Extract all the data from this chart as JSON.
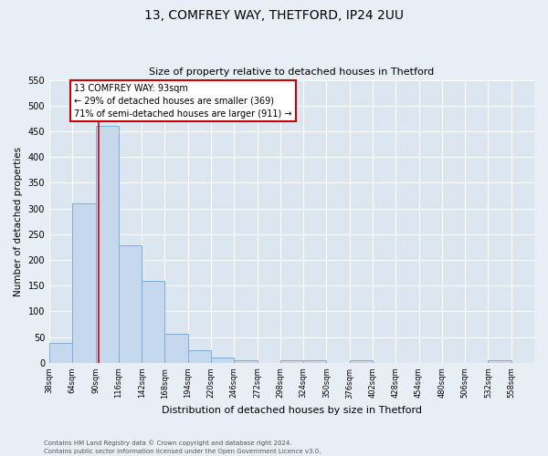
{
  "title_line1": "13, COMFREY WAY, THETFORD, IP24 2UU",
  "title_line2": "Size of property relative to detached houses in Thetford",
  "bar_edges": [
    38,
    64,
    90,
    116,
    142,
    168,
    194,
    220,
    246,
    272,
    298,
    324,
    350,
    376,
    402,
    428,
    454,
    480,
    506,
    532,
    558
  ],
  "bar_heights": [
    38,
    310,
    460,
    228,
    160,
    57,
    25,
    11,
    5,
    0,
    5,
    5,
    0,
    5,
    0,
    0,
    0,
    0,
    0,
    5
  ],
  "bar_color": "#c5d8ee",
  "bar_edge_color": "#7bafd4",
  "property_line_x": 93,
  "property_line_color": "#cc0000",
  "ylabel": "Number of detached properties",
  "xlabel": "Distribution of detached houses by size in Thetford",
  "ylim": [
    0,
    550
  ],
  "yticks": [
    0,
    50,
    100,
    150,
    200,
    250,
    300,
    350,
    400,
    450,
    500,
    550
  ],
  "annotation_title": "13 COMFREY WAY: 93sqm",
  "annotation_line1": "← 29% of detached houses are smaller (369)",
  "annotation_line2": "71% of semi-detached houses are larger (911) →",
  "annotation_box_color": "#ffffff",
  "annotation_box_edge_color": "#cc0000",
  "footnote_line1": "Contains HM Land Registry data © Crown copyright and database right 2024.",
  "footnote_line2": "Contains public sector information licensed under the Open Government Licence v3.0.",
  "background_color": "#e8eef5",
  "plot_bg_color": "#dce6f0",
  "fig_width": 6.0,
  "fig_height": 5.0,
  "fig_dpi": 100
}
